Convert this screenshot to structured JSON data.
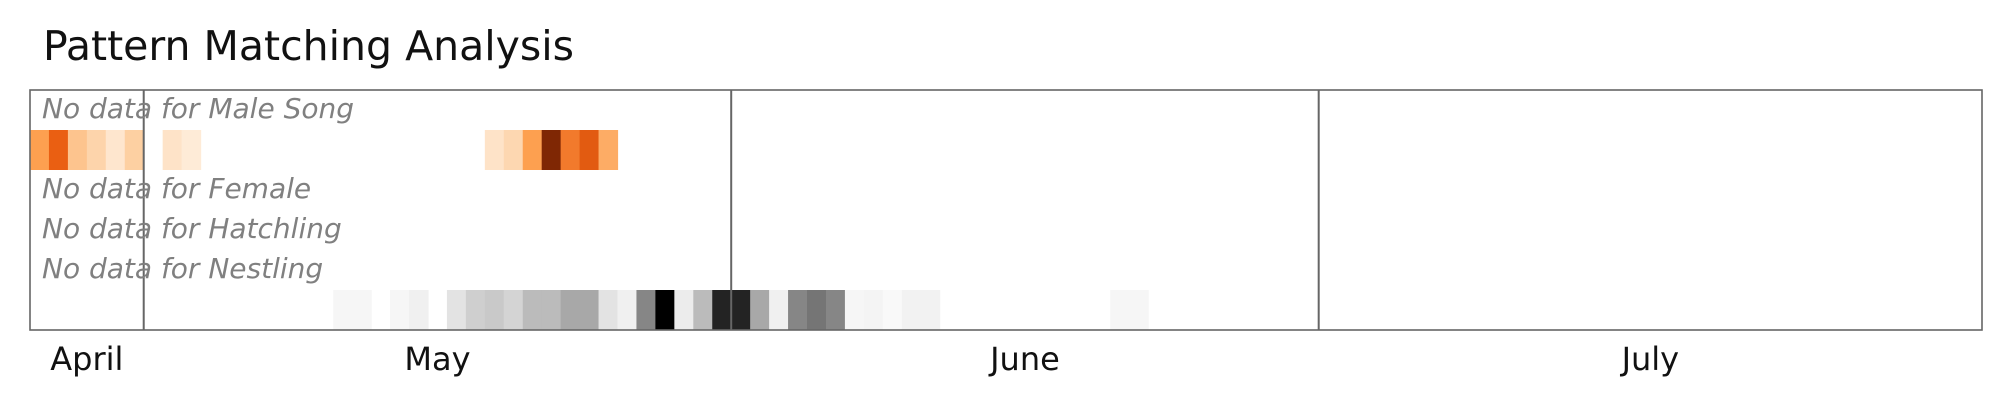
{
  "chart_data": {
    "type": "heatmap",
    "title": "Pattern Matching Analysis",
    "x_axis": {
      "type": "date",
      "range": [
        "2020-04-01",
        "2020-07-13"
      ]
    },
    "month_labels": [
      "April",
      "May",
      "June",
      "July"
    ],
    "month_boundaries": [
      "2020-04-07",
      "2020-05-08",
      "2020-06-08"
    ],
    "rows": [
      {
        "series": "Male Song",
        "no_data_text": "No data for Male Song",
        "values": []
      },
      {
        "series": "Male Song",
        "colormap": "oranges",
        "values": [
          {
            "date": "2020-04-01",
            "level": 0.45
          },
          {
            "date": "2020-04-02",
            "level": 0.62
          },
          {
            "date": "2020-04-03",
            "level": 0.3
          },
          {
            "date": "2020-04-04",
            "level": 0.22
          },
          {
            "date": "2020-04-05",
            "level": 0.1
          },
          {
            "date": "2020-04-06",
            "level": 0.25
          },
          {
            "date": "2020-04-08",
            "level": 0.12
          },
          {
            "date": "2020-04-09",
            "level": 0.07
          },
          {
            "date": "2020-04-25",
            "level": 0.12
          },
          {
            "date": "2020-04-26",
            "level": 0.2
          },
          {
            "date": "2020-04-27",
            "level": 0.45
          },
          {
            "date": "2020-04-28",
            "level": 1.0
          },
          {
            "date": "2020-04-29",
            "level": 0.55
          },
          {
            "date": "2020-04-30",
            "level": 0.65
          },
          {
            "date": "2020-05-01",
            "level": 0.4
          }
        ]
      },
      {
        "series": "Female",
        "no_data_text": "No data for Female",
        "values": []
      },
      {
        "series": "Hatchling",
        "no_data_text": "No data for Hatchling",
        "values": []
      },
      {
        "series": "Nestling",
        "no_data_text": "No data for Nestling",
        "values": []
      },
      {
        "series": "",
        "colormap": "greys",
        "values": [
          {
            "date": "2020-04-17",
            "level": 0.04
          },
          {
            "date": "2020-04-18",
            "level": 0.04
          },
          {
            "date": "2020-04-20",
            "level": 0.04
          },
          {
            "date": "2020-04-21",
            "level": 0.07
          },
          {
            "date": "2020-04-23",
            "level": 0.13
          },
          {
            "date": "2020-04-24",
            "level": 0.22
          },
          {
            "date": "2020-04-25",
            "level": 0.25
          },
          {
            "date": "2020-04-26",
            "level": 0.2
          },
          {
            "date": "2020-04-27",
            "level": 0.31
          },
          {
            "date": "2020-04-28",
            "level": 0.31
          },
          {
            "date": "2020-04-29",
            "level": 0.38
          },
          {
            "date": "2020-04-30",
            "level": 0.38
          },
          {
            "date": "2020-05-01",
            "level": 0.13
          },
          {
            "date": "2020-05-02",
            "level": 0.07
          },
          {
            "date": "2020-05-03",
            "level": 0.5
          },
          {
            "date": "2020-05-04",
            "level": 1.0
          },
          {
            "date": "2020-05-05",
            "level": 0.09
          },
          {
            "date": "2020-05-06",
            "level": 0.31
          },
          {
            "date": "2020-05-07",
            "level": 0.88
          },
          {
            "date": "2020-05-08",
            "level": 0.88
          },
          {
            "date": "2020-05-09",
            "level": 0.38
          },
          {
            "date": "2020-05-10",
            "level": 0.07
          },
          {
            "date": "2020-05-11",
            "level": 0.5
          },
          {
            "date": "2020-05-12",
            "level": 0.56
          },
          {
            "date": "2020-05-13",
            "level": 0.5
          },
          {
            "date": "2020-05-14",
            "level": 0.04
          },
          {
            "date": "2020-05-15",
            "level": 0.05
          },
          {
            "date": "2020-05-16",
            "level": 0.03
          },
          {
            "date": "2020-05-17",
            "level": 0.06
          },
          {
            "date": "2020-05-18",
            "level": 0.06
          },
          {
            "date": "2020-05-28",
            "level": 0.04
          },
          {
            "date": "2020-05-29",
            "level": 0.04
          }
        ]
      }
    ],
    "grid": false,
    "legend": "none"
  }
}
